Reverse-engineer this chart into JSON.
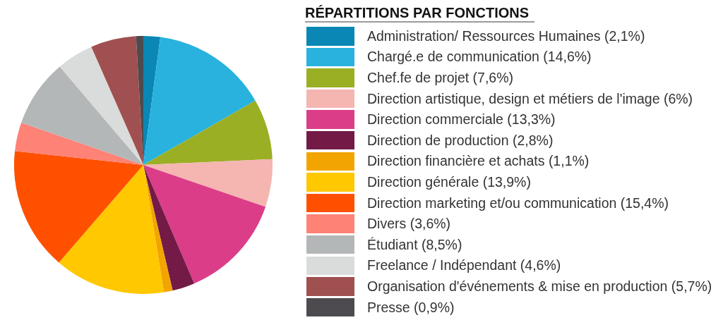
{
  "chart_data": {
    "type": "pie",
    "title": "RÉPARTITIONS PAR FONCTIONS",
    "categories": [
      "Administration/ Ressources Humaines",
      "Chargé.e de communication",
      "Chef.fe de projet",
      "Direction artistique, design et métiers de l'image",
      "Direction commerciale",
      "Direction de production",
      "Direction financière et achats",
      "Direction générale",
      "Direction marketing et/ou communication",
      "Divers",
      "Étudiant",
      "Freelance / Indépendant",
      "Organisation d'événements & mise en production",
      "Presse"
    ],
    "values": [
      2.1,
      14.6,
      7.6,
      6,
      13.3,
      2.8,
      1.1,
      13.9,
      15.4,
      3.6,
      8.5,
      4.6,
      5.7,
      0.9
    ],
    "value_labels": [
      "(2,1%)",
      "(14,6%)",
      "(7,6%)",
      "(6%)",
      "(13,3%)",
      "(2,8%)",
      "(1,1%)",
      "(13,9%)",
      "(15,4%)",
      "(3,6%)",
      "(8,5%)",
      "(4,6%)",
      "(5,7%)",
      "(0,9%)"
    ],
    "colors": [
      "#0a87b4",
      "#29b2de",
      "#9aaf24",
      "#f5b5b1",
      "#dc3d88",
      "#731a46",
      "#f2a500",
      "#ffc800",
      "#ff5000",
      "#ff8277",
      "#b4b7b7",
      "#dadcdb",
      "#a05050",
      "#4d4b4f"
    ],
    "legend": "right"
  }
}
